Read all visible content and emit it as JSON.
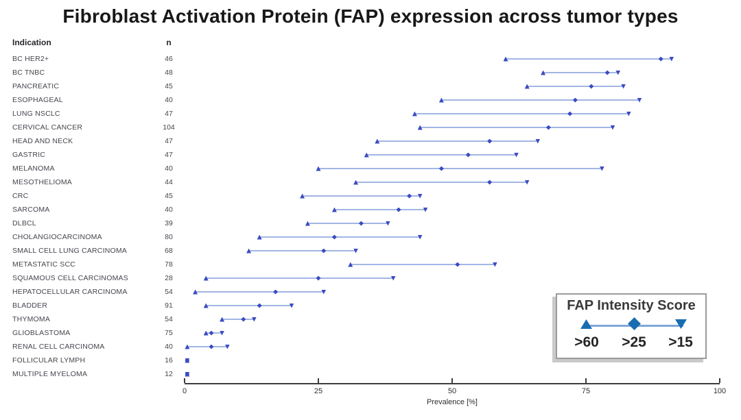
{
  "title": "Fibroblast Activation Protein (FAP) expression across tumor types",
  "columns": {
    "indication": "Indication",
    "n": "n"
  },
  "colors": {
    "range_line": "#a3b5e4",
    "marker": "#3a4cc0",
    "axis": "#3c3c3c",
    "legend_marker": "#1a6cb0",
    "legend_line": "#7fa8d9"
  },
  "legend": {
    "title": "FAP Intensity Score"
  },
  "chart_data": {
    "type": "scatter",
    "title": "Fibroblast Activation Protein (FAP) expression across tumor types",
    "xlabel": "Prevalence [%]",
    "xlim": [
      0,
      100
    ],
    "x_ticks": [
      0,
      25,
      50,
      75,
      100
    ],
    "grid": false,
    "legend_position": "bottom-right",
    "categories": [
      "BC HER2+",
      "BC TNBC",
      "PANCREATIC",
      "ESOPHAGEAL",
      "LUNG NSCLC",
      "CERVICAL CANCER",
      "HEAD AND NECK",
      "GASTRIC",
      "MELANOMA",
      "MESOTHELIOMA",
      "CRC",
      "SARCOMA",
      "DLBCL",
      "CHOLANGIOCARCINOMA",
      "SMALL CELL LUNG CARCINOMA",
      "METASTATIC SCC",
      "SQUAMOUS CELL CARCINOMAS",
      "HEPATOCELLULAR CARCINOMA",
      "BLADDER",
      "THYMOMA",
      "GLIOBLASTOMA",
      "RENAL CELL CARCINOMA",
      "FOLLICULAR LYMPH",
      "MULTIPLE MYELOMA"
    ],
    "n_values": [
      46,
      48,
      45,
      40,
      47,
      104,
      47,
      47,
      40,
      44,
      45,
      40,
      39,
      80,
      68,
      78,
      28,
      54,
      91,
      54,
      75,
      40,
      16,
      12
    ],
    "series": [
      {
        "name": ">60",
        "marker": "triangle-up",
        "values": [
          60,
          67,
          64,
          48,
          43,
          44,
          36,
          34,
          25,
          32,
          22,
          28,
          23,
          14,
          12,
          31,
          4,
          2,
          4,
          7,
          4,
          0.5,
          0.5,
          0.5
        ]
      },
      {
        "name": ">25",
        "marker": "diamond",
        "values": [
          89,
          79,
          76,
          73,
          72,
          68,
          57,
          53,
          48,
          57,
          42,
          40,
          33,
          28,
          26,
          51,
          25,
          17,
          14,
          11,
          5,
          5,
          0.5,
          0.5
        ]
      },
      {
        "name": ">15",
        "marker": "triangle-down",
        "values": [
          91,
          81,
          82,
          85,
          83,
          80,
          66,
          62,
          78,
          64,
          44,
          45,
          38,
          44,
          32,
          58,
          39,
          26,
          20,
          13,
          7,
          8,
          0.5,
          0.5
        ]
      }
    ],
    "legend": {
      "title": "FAP Intensity Score",
      "items": [
        ">60",
        ">25",
        ">15"
      ]
    }
  }
}
